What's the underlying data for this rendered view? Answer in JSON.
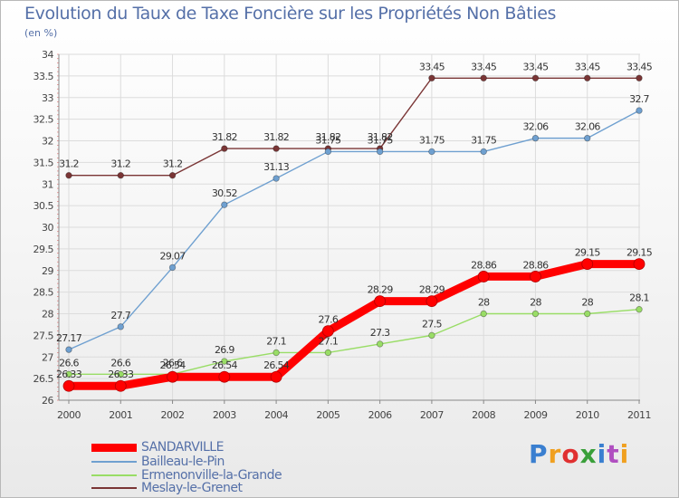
{
  "title": "Evolution du Taux de Taxe Foncière sur les Propriétés Non Bâties",
  "subtitle": "(en %)",
  "brand": {
    "text": "Proxiti",
    "colors": [
      "#3a7fd0",
      "#f0a020",
      "#e03030",
      "#3a9f3a",
      "#3a7fd0",
      "#b04fc0",
      "#f0a020"
    ]
  },
  "chart_data": {
    "type": "line",
    "title": "Evolution du Taux de Taxe Foncière sur les Propriétés Non Bâties",
    "ylabel": "(en %)",
    "xlabel": "",
    "categories": [
      "2000",
      "2001",
      "2002",
      "2003",
      "2004",
      "2005",
      "2006",
      "2007",
      "2008",
      "2009",
      "2010",
      "2011"
    ],
    "ylim": [
      26,
      34
    ],
    "yticks": [
      "26",
      "26.5",
      "27",
      "27.5",
      "28",
      "28.5",
      "29",
      "29.5",
      "30",
      "30.5",
      "31",
      "31.5",
      "32",
      "32.5",
      "33",
      "33.5",
      "34"
    ],
    "grid": true,
    "legend_position": "bottom-left",
    "series": [
      {
        "name": "SANDARVILLE",
        "color": "#ff0000",
        "emphasis": "thick",
        "values": [
          26.33,
          26.33,
          26.54,
          26.54,
          26.54,
          27.6,
          28.29,
          28.29,
          28.86,
          28.86,
          29.15,
          29.15
        ],
        "labels": [
          "26.33",
          "26.33",
          "26.54",
          "26.54",
          "26.54",
          "27.6",
          "28.29",
          "28.29",
          "28.86",
          "28.86",
          "29.15",
          "29.15"
        ]
      },
      {
        "name": "Bailleau-le-Pin",
        "color": "#6fa0d0",
        "emphasis": "normal",
        "values": [
          27.17,
          27.7,
          29.07,
          30.52,
          31.13,
          31.75,
          31.75,
          31.75,
          31.75,
          32.06,
          32.06,
          32.7
        ],
        "labels": [
          "27.17",
          "27.7",
          "29.07",
          "30.52",
          "31.13",
          "31.75",
          "31.75",
          "31.75",
          "31.75",
          "32.06",
          "32.06",
          "32.7"
        ]
      },
      {
        "name": "Ermenonville-la-Grande",
        "color": "#99dd66",
        "emphasis": "normal",
        "values": [
          26.6,
          26.6,
          26.6,
          26.9,
          27.1,
          27.1,
          27.3,
          27.5,
          28,
          28,
          28,
          28.1
        ],
        "labels": [
          "26.6",
          "26.6",
          "26.6",
          "26.9",
          "27.1",
          "27.1",
          "27.3",
          "27.5",
          "28",
          "28",
          "28",
          "28.1"
        ]
      },
      {
        "name": "Meslay-le-Grenet",
        "color": "#7a3535",
        "emphasis": "normal",
        "values": [
          31.2,
          31.2,
          31.2,
          31.82,
          31.82,
          31.82,
          31.82,
          33.45,
          33.45,
          33.45,
          33.45,
          33.45
        ],
        "labels": [
          "31.2",
          "31.2",
          "31.2",
          "31.82",
          "31.82",
          "31.82",
          "31.82",
          "33.45",
          "33.45",
          "33.45",
          "33.45",
          "33.45"
        ]
      }
    ]
  }
}
